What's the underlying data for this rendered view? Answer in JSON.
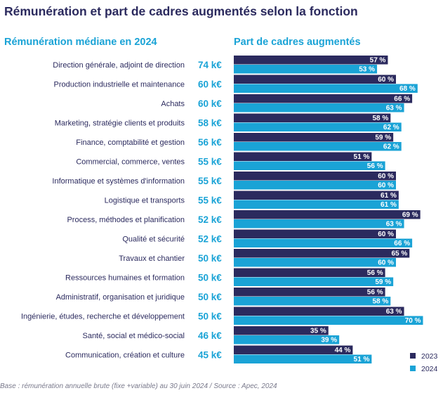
{
  "title": "Rémunération et part de cadres augmentés selon la fonction",
  "salary_header": "Rémunération médiane en 2024",
  "share_header": "Part de cadres augmentés",
  "source": "Base : rémunération annuelle brute (fixe +variable) au 30 juin 2024 / Source : Apec, 2024",
  "colors": {
    "series_2023": "#2b2a5e",
    "series_2024": "#1aa3d6",
    "salary_text": "#1aa3d6",
    "label_text": "#2b2a5e"
  },
  "chart_data": {
    "type": "bar",
    "orientation": "horizontal",
    "categories": [
      "Direction générale, adjoint de direction",
      "Production industrielle et maintenance",
      "Achats",
      "Marketing, stratégie clients et produits",
      "Finance, comptabilité et gestion",
      "Commercial, commerce, ventes",
      "Informatique et systèmes d'information",
      "Logistique et transports",
      "Process, méthodes et planification",
      "Qualité et sécurité",
      "Travaux et chantier",
      "Ressources humaines et formation",
      "Administratif, organisation et juridique",
      "Ingénierie, études, recherche et développement",
      "Santé, social et médico-social",
      "Communication, création et culture"
    ],
    "salaries": [
      "74 k€",
      "60 k€",
      "60 k€",
      "58 k€",
      "56 k€",
      "55 k€",
      "55 k€",
      "55 k€",
      "52 k€",
      "52 k€",
      "50 k€",
      "50 k€",
      "50 k€",
      "50 k€",
      "46 k€",
      "45 k€"
    ],
    "series": [
      {
        "name": "2023",
        "values": [
          57,
          60,
          66,
          58,
          59,
          51,
          60,
          61,
          69,
          60,
          65,
          56,
          56,
          63,
          35,
          44
        ]
      },
      {
        "name": "2024",
        "values": [
          53,
          68,
          63,
          62,
          62,
          56,
          60,
          61,
          63,
          66,
          60,
          59,
          58,
          70,
          39,
          51
        ]
      }
    ],
    "value_suffix": " %"
  }
}
